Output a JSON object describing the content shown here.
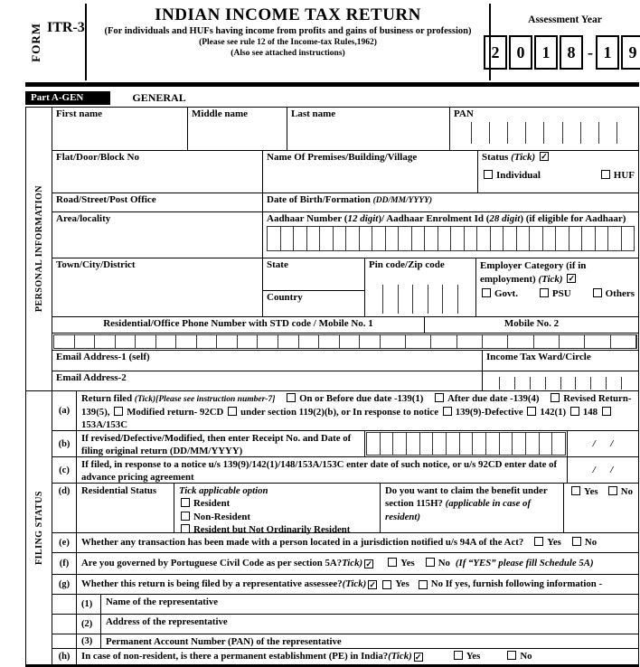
{
  "icons": {
    "check": "✓"
  },
  "header": {
    "form_label": "FORM",
    "form_number": "ITR-3",
    "title": "INDIAN INCOME TAX RETURN",
    "subtitle1": "(For individuals and HUFs having income from  profits and gains  of business or profession)",
    "subtitle2": "(Please see rule 12 of the Income-tax Rules,1962)",
    "subtitle3": "(Also see attached instructions)",
    "assessment_year_label": "Assessment Year",
    "ay": [
      "2",
      "0",
      "1",
      "8",
      "1",
      "9"
    ],
    "ay_dash": "-"
  },
  "part_a": {
    "label": "Part A-GEN",
    "title": "GENERAL"
  },
  "personal": {
    "side_label": "PERSONAL INFORMATION",
    "first_name_label": "First name",
    "middle_name_label": "Middle name",
    "last_name_label": "Last name",
    "pan_label": "PAN",
    "flat_label": "Flat/Door/Block No",
    "premises_label": "Name Of Premises/Building/Village",
    "status_label": "Status ",
    "status_tick": "(Tick)",
    "individual_label": "Individual",
    "huf_label": "HUF",
    "road_label": "Road/Street/Post Office",
    "dob_label": "Date of Birth/Formation ",
    "dob_format": "(DD/MM/YYYY)",
    "area_label": "Area/locality",
    "aadhaar_p1": "Aadhaar Number (",
    "aadhaar_i1": "12 digit",
    "aadhaar_p2": ")/ Aadhaar Enrolment Id (",
    "aadhaar_i2": "28 digit",
    "aadhaar_p3": ") (if eligible for Aadhaar)",
    "town_label": "Town/City/District",
    "state_label": "State",
    "country_label": "Country",
    "pin_label": "Pin code/Zip code",
    "employer_label": "Employer Category (if in employment) ",
    "employer_tick": "(Tick)",
    "govt_label": "Govt.",
    "psu_label": "PSU",
    "others_label": "Others",
    "phone_label": "Residential/Office Phone Number with STD code / Mobile No. 1",
    "mobile2_label": "Mobile No. 2",
    "email1_label": "Email Address-1 (self)",
    "ward_label": "Income Tax Ward/Circle",
    "email2_label": "Email Address-2"
  },
  "filing": {
    "side_label": "FILING STATUS",
    "a": {
      "key": "(a)",
      "pre": "Return filed ",
      "inst": "(Tick)[Please see instruction number-7]",
      "opt1": "On or Before due date -139(1)",
      "opt2": "After due date -139(4)",
      "opt3": "Revised Return- 139(5),",
      "opt4": "Modified return- 92CD",
      "opt5": "under section 119(2)(b), or  In response to notice",
      "opt6": "139(9)-Defective",
      "opt7": "142(1)",
      "opt8": "148",
      "opt9": "153A/153C"
    },
    "b": {
      "key": "(b)",
      "text": "If revised/Defective/Modified, then enter Receipt No. and Date of filing original return (DD/MM/YYYY)",
      "date": "/      /"
    },
    "c": {
      "key": "(c)",
      "text": "If filed, in response to a notice u/s 139(9)/142(1)/148/153A/153C enter date of such notice, or u/s 92CD enter date of advance pricing agreement",
      "date": "/      /"
    },
    "d": {
      "key": "(d)",
      "label": "Residential Status",
      "tick_head": "Tick applicable option",
      "opts": [
        "Resident",
        "Non-Resident",
        "Resident but Not Ordinarily Resident"
      ],
      "q": "Do you want to claim the benefit under section 115H? ",
      "q_i": "(applicable in case of resident)",
      "yes": "Yes",
      "no": "No"
    },
    "e": {
      "key": "(e)",
      "text": "Whether any transaction has been made with a person located in a jurisdiction notified u/s 94A of the Act?",
      "yes": "Yes",
      "no": "No"
    },
    "f": {
      "key": "(f)",
      "text": "Are you governed by Portuguese Civil Code as per section 5A? ",
      "tick": "Tick)",
      "yes": "Yes",
      "no": "No",
      "note": "(If “YES” please fill Schedule 5A)"
    },
    "g": {
      "key": "(g)",
      "text": "Whether this return is being filed by a representative assessee? ",
      "tick": "(Tick)",
      "yes": "Yes",
      "tail": "No If yes, furnish following information -"
    },
    "g1": {
      "num": "(1)",
      "text": "Name of the representative"
    },
    "g2": {
      "num": "(2)",
      "text": "Address of the representative"
    },
    "g3": {
      "num": "(3)",
      "text": "Permanent Account Number (PAN)  of the representative"
    },
    "h": {
      "key": "(h)",
      "text": "In case of non-resident, is there a permanent establishment (PE) in India? ",
      "tick": "(Tick)",
      "yes": "Yes",
      "no": "No"
    }
  }
}
